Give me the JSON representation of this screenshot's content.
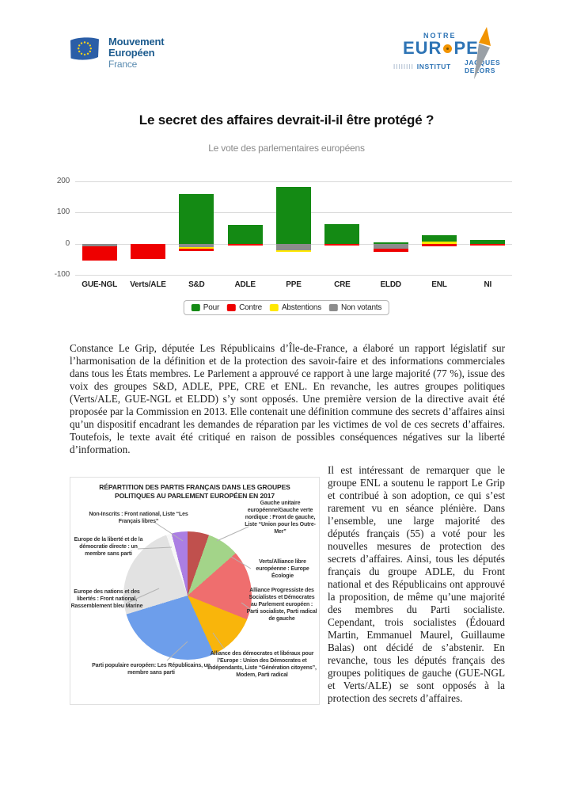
{
  "header": {
    "left_logo": {
      "line1": "Mouvement",
      "line2": "Européen",
      "line3": "France"
    },
    "right_logo": {
      "top": "NOTRE",
      "main_left": "EUR",
      "main_right": "PE",
      "ticks": "IIIIIIII",
      "sub_left": "INSTITUT",
      "sub_right": "JACQUES DELORS"
    }
  },
  "title": "Le secret des affaires devrait-il-il être protégé ?",
  "subtitle": "Le vote des parlementaires européens",
  "chart_data": [
    {
      "type": "bar",
      "stacked": true,
      "title": "Le vote des parlementaires européens",
      "categories": [
        "GUE-NGL",
        "Verts/ALE",
        "S&D",
        "ADLE",
        "PPE",
        "CRE",
        "ELDD",
        "ENL",
        "NI"
      ],
      "series": [
        {
          "name": "Pour",
          "color": "#148a14",
          "values": [
            0,
            0,
            160,
            60,
            183,
            62,
            3,
            20,
            11
          ]
        },
        {
          "name": "Contre",
          "color": "#ee0000",
          "values": [
            -45,
            -50,
            -8,
            -5,
            0,
            -5,
            -12,
            -8,
            -4
          ]
        },
        {
          "name": "Abstentions",
          "color": "#ffe800",
          "values": [
            0,
            0,
            -7,
            0,
            -5,
            0,
            0,
            8,
            0
          ]
        },
        {
          "name": "Non votants",
          "color": "#8c8c8c",
          "values": [
            -8,
            0,
            -10,
            -2,
            -22,
            0,
            -15,
            0,
            -2
          ]
        }
      ],
      "ylim": [
        -100,
        200
      ],
      "yticks": [
        200,
        100,
        0,
        -100
      ],
      "grid": true,
      "legend_position": "bottom"
    },
    {
      "type": "pie",
      "title": "RÉPARTITION DES PARTIS FRANÇAIS DANS LES GROUPES POLITIQUES AU PARLEMENT EUROPÉEN EN 2017",
      "direction": "clockwise",
      "start_angle_deg": 0,
      "slices": [
        {
          "label": "Gauche unitaire européenne/Gauche verte nordique : Front de gauche, Liste “Union pour les Outre-Mer”",
          "value": 4,
          "color": "#c0504d"
        },
        {
          "label": "Verts/Alliance libre européenne : Europe Écologie",
          "value": 6,
          "color": "#a3d489"
        },
        {
          "label": "Alliance Progressiste des Socialistes et Démocrates au Parlement européen : Parti socialiste, Parti radical de gauche",
          "value": 13,
          "color": "#ef6e6e"
        },
        {
          "label": "Alliance des démocrates et libéraux pour l’Europe : Union des Démocrates et Indépendants, Liste “Génération citoyens”, Modem, Parti radical",
          "value": 9,
          "color": "#f9b50b"
        },
        {
          "label": "Parti populaire européen: Les Républicains, un membre sans parti",
          "value": 20,
          "color": "#6d9eeb"
        },
        {
          "label": "Europe des nations et des libertés : Front national, Rassemblement bleu Marine",
          "value": 18,
          "color": "#e2e2e2"
        },
        {
          "label": "Europe de la liberté et de la démocratie directe : un membre sans parti",
          "value": 1,
          "color": "#f7f7f7"
        },
        {
          "label": "Non-Inscrits : Front national, Liste “Les Français libres”",
          "value": 3,
          "color": "#ab7ee3"
        }
      ]
    }
  ],
  "paragraphs": {
    "p1": "Constance Le Grip, députée Les Républicains d’Île-de-France, a élaboré un rapport législatif sur l’harmonisation de la définition et de la protection des savoir-faire et des informations commerciales dans tous les États membres. Le Parlement a approuvé ce rapport à une large majorité (77 %), issue des voix des groupes S&D, ADLE, PPE, CRE et ENL. En revanche, les autres groupes politiques (Verts/ALE, GUE-NGL et ELDD) s’y sont opposés. Une première version de la directive avait été proposée par la Commission en 2013. Elle contenait une définition commune des secrets d’affaires ainsi qu’un dispositif encadrant les demandes de réparation par les victimes de vol de ces secrets d’affaires. Toutefois, le texte avait été critiqué en raison de possibles conséquences négatives sur la liberté d’information.",
    "p2": "Il est intéressant de remarquer que le groupe ENL a soutenu le rapport Le Grip et contribué à son adoption, ce qui s’est rarement vu en séance plénière. Dans l’ensemble, une large majorité des députés français (55) a voté pour les nouvelles mesures de protection des secrets d’affaires. Ainsi, tous les députés français du groupe ADLE, du Front national et des Républicains ont approuvé la proposition, de même qu’une majorité des membres du Parti socialiste. Cependant, trois socialistes (Édouard Martin, Emmanuel Maurel, Guillaume Balas) ont décidé de s’abstenir. En revanche, tous les députés français des groupes politiques de gauche (GUE-NGL et Verts/ALE) se sont opposés à la protection des secrets d’affaires."
  },
  "colors": {
    "eu_blue": "#2b5ea7",
    "eu_star_yellow": "#ffd617",
    "logo_blue": "#2e74b5",
    "logo_orange": "#f29400",
    "pour_green": "#148a14",
    "contre_red": "#ee0000",
    "abstention_yellow": "#ffe800",
    "nonvotant_gray": "#8c8c8c"
  }
}
